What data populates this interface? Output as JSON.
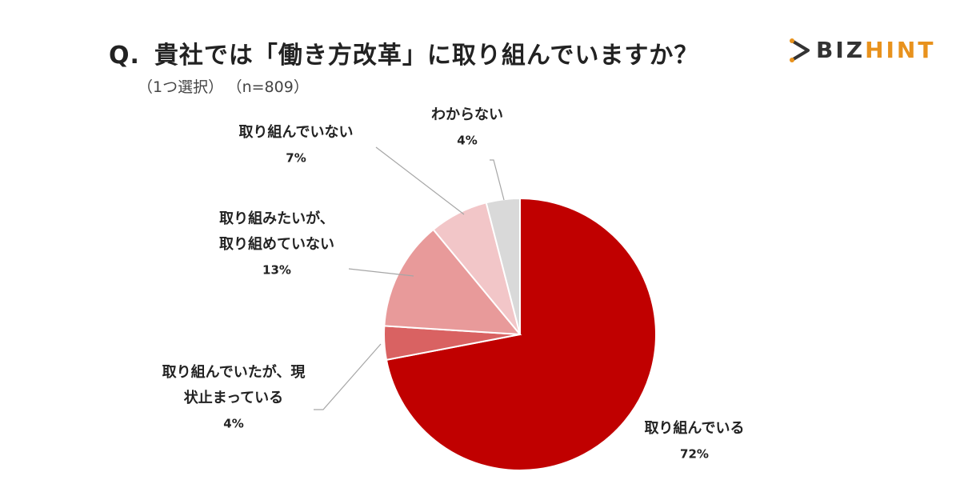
{
  "header": {
    "q_prefix": "Q.",
    "question": "貴社では「働き方改革」に取り組んでいますか？",
    "subtitle_choice": "（1つ選択）",
    "subtitle_n": "（n=809）"
  },
  "logo": {
    "text_main": "BIZ",
    "text_accent": "HINT",
    "icon": "play-arrow-icon"
  },
  "chart_data": {
    "type": "pie",
    "title": "貴社では「働き方改革」に取り組んでいますか？",
    "start": "12 o'clock",
    "direction": "clockwise",
    "slices": [
      {
        "label_lines": [
          "取り組んでいる"
        ],
        "value": 72,
        "value_label": "72%",
        "color": "#c00000"
      },
      {
        "label_lines": [
          "取り組んでいたが、現",
          "状止まっている"
        ],
        "value": 4,
        "value_label": "4%",
        "color": "#d96262"
      },
      {
        "label_lines": [
          "取り組みたいが、",
          "取り組めていない"
        ],
        "value": 13,
        "value_label": "13%",
        "color": "#e89a9a"
      },
      {
        "label_lines": [
          "取り組んでいない"
        ],
        "value": 7,
        "value_label": "7%",
        "color": "#f2c6c8"
      },
      {
        "label_lines": [
          "わからない"
        ],
        "value": 4,
        "value_label": "4%",
        "color": "#d9d9d9"
      }
    ]
  }
}
